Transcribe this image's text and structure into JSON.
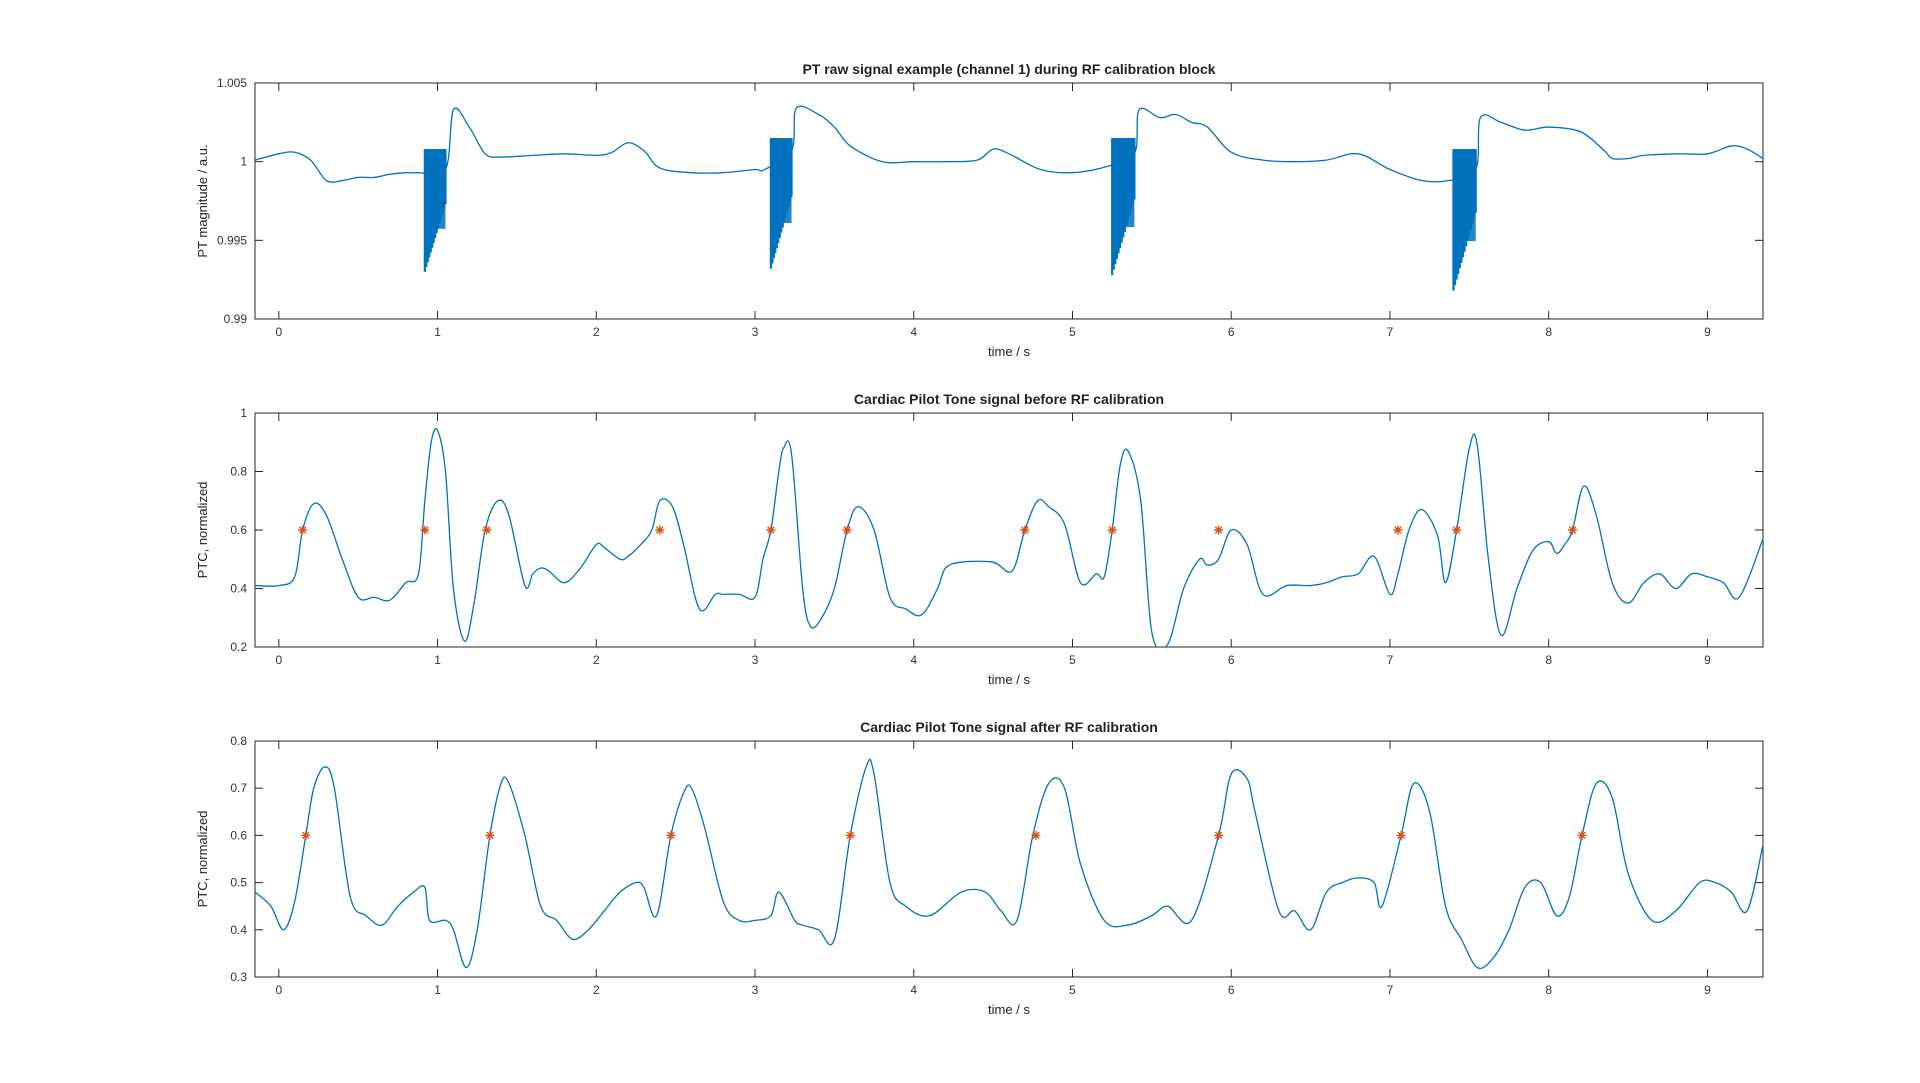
{
  "chart_data": [
    {
      "type": "line",
      "title": "PT raw signal example (channel 1) during RF calibration block",
      "xlabel": "time / s",
      "ylabel": "PT magnitude / a.u.",
      "xlim": [
        -0.15,
        9.35
      ],
      "ylim": [
        0.99,
        1.005
      ],
      "xticks": [
        0,
        1,
        2,
        3,
        4,
        5,
        6,
        7,
        8,
        9
      ],
      "xtick_labels": [
        "0",
        "1",
        "2",
        "3",
        "4",
        "5",
        "6",
        "7",
        "8",
        "9"
      ],
      "yticks": [
        0.99,
        0.995,
        1,
        1.005
      ],
      "ytick_labels": [
        "0.99",
        "0.995",
        "1",
        "1.005"
      ],
      "series_color": "#0072BD",
      "series": [
        {
          "name": "PT magnitude",
          "x": [
            -0.15,
            0.0,
            0.1,
            0.2,
            0.3,
            0.4,
            0.5,
            0.6,
            0.7,
            0.8,
            0.88,
            1.05,
            1.1,
            1.2,
            1.3,
            1.4,
            1.6,
            1.8,
            2.0,
            2.1,
            2.2,
            2.3,
            2.4,
            2.6,
            2.8,
            3.0,
            3.06,
            3.23,
            3.26,
            3.4,
            3.5,
            3.6,
            3.8,
            4.0,
            4.2,
            4.4,
            4.5,
            4.6,
            4.8,
            5.0,
            5.22,
            5.39,
            5.42,
            5.55,
            5.65,
            5.75,
            5.85,
            6.0,
            6.2,
            6.4,
            6.6,
            6.8,
            7.0,
            7.2,
            7.37,
            7.54,
            7.57,
            7.7,
            7.85,
            8.0,
            8.2,
            8.35,
            8.4,
            8.5,
            8.6,
            8.8,
            9.0,
            9.15,
            9.25,
            9.35
          ],
          "y": [
            1.0001,
            1.0005,
            1.0006,
            1.0001,
            0.9988,
            0.9988,
            0.999,
            0.999,
            0.9992,
            0.9993,
            0.9993,
            0.9995,
            1.0033,
            1.0022,
            1.0005,
            1.0003,
            1.0004,
            1.0005,
            1.0004,
            1.0006,
            1.0012,
            1.0007,
            0.9996,
            0.9993,
            0.9993,
            0.9995,
            0.9995,
            1.0007,
            1.0034,
            1.003,
            1.0022,
            1.001,
            1.0,
            1.0,
            1.0,
            1.0001,
            1.0008,
            1.0005,
            0.9995,
            0.9993,
            0.9997,
            1.0005,
            1.0033,
            1.0028,
            1.003,
            1.0025,
            1.0022,
            1.0006,
            1.0001,
            1.0,
            1.0001,
            1.0005,
            0.9995,
            0.9988,
            0.9988,
            0.9995,
            1.0028,
            1.0025,
            1.002,
            1.0022,
            1.0019,
            1.0007,
            1.0002,
            1.0002,
            1.0004,
            1.0005,
            1.0005,
            1.001,
            1.0008,
            1.0002
          ],
          "bursts": [
            {
              "start": 0.92,
              "end": 1.05,
              "min": 0.993,
              "max": 1.0008
            },
            {
              "start": 3.1,
              "end": 3.23,
              "min": 0.9932,
              "max": 1.0015
            },
            {
              "start": 5.25,
              "end": 5.39,
              "min": 0.9928,
              "max": 1.0015
            },
            {
              "start": 7.4,
              "end": 7.54,
              "min": 0.9918,
              "max": 1.0008
            }
          ]
        }
      ]
    },
    {
      "type": "line",
      "title": "Cardiac Pilot Tone signal before RF calibration",
      "xlabel": "time / s",
      "ylabel": "PTC, normalized",
      "xlim": [
        -0.15,
        9.35
      ],
      "ylim": [
        0.2,
        1.0
      ],
      "xticks": [
        0,
        1,
        2,
        3,
        4,
        5,
        6,
        7,
        8,
        9
      ],
      "xtick_labels": [
        "0",
        "1",
        "2",
        "3",
        "4",
        "5",
        "6",
        "7",
        "8",
        "9"
      ],
      "yticks": [
        0.2,
        0.4,
        0.6,
        0.8,
        1.0
      ],
      "ytick_labels": [
        "0.2",
        "0.4",
        "0.6",
        "0.8",
        "1"
      ],
      "series_color": "#0072BD",
      "marker_color": "#D95319",
      "series": [
        {
          "name": "PTC",
          "x": [
            -0.15,
            0.0,
            0.1,
            0.15,
            0.22,
            0.3,
            0.4,
            0.5,
            0.6,
            0.7,
            0.8,
            0.88,
            0.92,
            0.96,
            1.0,
            1.05,
            1.1,
            1.17,
            1.23,
            1.3,
            1.38,
            1.45,
            1.55,
            1.6,
            1.65,
            1.7,
            1.8,
            1.9,
            2.0,
            2.05,
            2.15,
            2.2,
            2.28,
            2.35,
            2.4,
            2.48,
            2.55,
            2.65,
            2.75,
            2.8,
            2.9,
            3.0,
            3.05,
            3.1,
            3.15,
            3.18,
            3.23,
            3.3,
            3.35,
            3.42,
            3.5,
            3.58,
            3.65,
            3.75,
            3.85,
            3.95,
            4.05,
            4.15,
            4.2,
            4.3,
            4.5,
            4.62,
            4.7,
            4.78,
            4.85,
            4.95,
            5.05,
            5.15,
            5.2,
            5.25,
            5.3,
            5.35,
            5.43,
            5.5,
            5.6,
            5.7,
            5.8,
            5.85,
            5.92,
            6.0,
            6.1,
            6.2,
            6.35,
            6.5,
            6.6,
            6.7,
            6.8,
            6.9,
            7.0,
            7.05,
            7.12,
            7.2,
            7.3,
            7.35,
            7.42,
            7.5,
            7.55,
            7.62,
            7.7,
            7.8,
            7.9,
            8.0,
            8.05,
            8.1,
            8.15,
            8.22,
            8.3,
            8.4,
            8.5,
            8.6,
            8.7,
            8.8,
            8.9,
            9.0,
            9.1,
            9.2,
            9.35
          ],
          "y": [
            0.41,
            0.41,
            0.44,
            0.6,
            0.69,
            0.65,
            0.5,
            0.37,
            0.37,
            0.36,
            0.42,
            0.45,
            0.7,
            0.9,
            0.94,
            0.8,
            0.4,
            0.22,
            0.35,
            0.6,
            0.7,
            0.65,
            0.41,
            0.45,
            0.47,
            0.46,
            0.42,
            0.47,
            0.55,
            0.54,
            0.5,
            0.51,
            0.55,
            0.6,
            0.7,
            0.68,
            0.55,
            0.33,
            0.38,
            0.38,
            0.38,
            0.37,
            0.5,
            0.6,
            0.8,
            0.88,
            0.86,
            0.4,
            0.27,
            0.3,
            0.4,
            0.6,
            0.68,
            0.6,
            0.37,
            0.33,
            0.31,
            0.4,
            0.47,
            0.49,
            0.49,
            0.46,
            0.6,
            0.7,
            0.68,
            0.62,
            0.42,
            0.45,
            0.44,
            0.6,
            0.82,
            0.87,
            0.7,
            0.25,
            0.21,
            0.4,
            0.5,
            0.48,
            0.5,
            0.6,
            0.55,
            0.38,
            0.41,
            0.41,
            0.42,
            0.44,
            0.45,
            0.51,
            0.38,
            0.45,
            0.6,
            0.67,
            0.58,
            0.42,
            0.6,
            0.88,
            0.89,
            0.5,
            0.24,
            0.4,
            0.53,
            0.56,
            0.52,
            0.55,
            0.6,
            0.75,
            0.65,
            0.42,
            0.35,
            0.42,
            0.45,
            0.4,
            0.45,
            0.44,
            0.42,
            0.37,
            0.57
          ]
        },
        {
          "name": "trigger markers",
          "marker": "*",
          "x": [
            0.15,
            0.92,
            1.31,
            2.4,
            3.1,
            3.58,
            4.7,
            5.25,
            5.92,
            7.05,
            7.42,
            8.15
          ],
          "y": [
            0.6,
            0.6,
            0.6,
            0.6,
            0.6,
            0.6,
            0.6,
            0.6,
            0.6,
            0.6,
            0.6,
            0.6
          ]
        }
      ]
    },
    {
      "type": "line",
      "title": "Cardiac Pilot Tone signal after RF calibration",
      "xlabel": "time / s",
      "ylabel": "PTC, normalized",
      "xlim": [
        -0.15,
        9.35
      ],
      "ylim": [
        0.3,
        0.8
      ],
      "xticks": [
        0,
        1,
        2,
        3,
        4,
        5,
        6,
        7,
        8,
        9
      ],
      "xtick_labels": [
        "0",
        "1",
        "2",
        "3",
        "4",
        "5",
        "6",
        "7",
        "8",
        "9"
      ],
      "yticks": [
        0.3,
        0.4,
        0.5,
        0.6,
        0.7,
        0.8
      ],
      "ytick_labels": [
        "0.3",
        "0.4",
        "0.5",
        "0.6",
        "0.7",
        "0.8"
      ],
      "series_color": "#0072BD",
      "marker_color": "#D95319",
      "series": [
        {
          "name": "PTC",
          "x": [
            -0.15,
            -0.05,
            0.03,
            0.1,
            0.17,
            0.22,
            0.29,
            0.35,
            0.45,
            0.55,
            0.65,
            0.75,
            0.85,
            0.92,
            0.95,
            1.05,
            1.1,
            1.18,
            1.25,
            1.33,
            1.4,
            1.45,
            1.55,
            1.65,
            1.75,
            1.85,
            1.95,
            2.05,
            2.15,
            2.25,
            2.3,
            2.38,
            2.47,
            2.55,
            2.6,
            2.68,
            2.8,
            2.9,
            3.0,
            3.1,
            3.15,
            3.25,
            3.3,
            3.4,
            3.5,
            3.6,
            3.7,
            3.75,
            3.85,
            3.95,
            4.1,
            4.3,
            4.45,
            4.55,
            4.65,
            4.75,
            4.85,
            4.95,
            5.05,
            5.2,
            5.35,
            5.5,
            5.6,
            5.75,
            5.92,
            6.0,
            6.1,
            6.15,
            6.3,
            6.4,
            6.5,
            6.6,
            6.7,
            6.8,
            6.9,
            6.95,
            7.07,
            7.15,
            7.25,
            7.35,
            7.45,
            7.55,
            7.65,
            7.75,
            7.85,
            7.95,
            8.05,
            8.13,
            8.21,
            8.3,
            8.4,
            8.5,
            8.65,
            8.8,
            8.95,
            9.05,
            9.15,
            9.25,
            9.35
          ],
          "y": [
            0.48,
            0.45,
            0.4,
            0.46,
            0.6,
            0.7,
            0.745,
            0.7,
            0.47,
            0.43,
            0.41,
            0.45,
            0.48,
            0.49,
            0.42,
            0.42,
            0.4,
            0.32,
            0.4,
            0.6,
            0.71,
            0.71,
            0.6,
            0.45,
            0.42,
            0.38,
            0.4,
            0.44,
            0.48,
            0.5,
            0.49,
            0.43,
            0.6,
            0.69,
            0.7,
            0.62,
            0.46,
            0.42,
            0.42,
            0.43,
            0.48,
            0.42,
            0.41,
            0.4,
            0.38,
            0.6,
            0.745,
            0.73,
            0.5,
            0.45,
            0.43,
            0.48,
            0.48,
            0.44,
            0.42,
            0.6,
            0.71,
            0.7,
            0.54,
            0.42,
            0.41,
            0.43,
            0.45,
            0.42,
            0.6,
            0.73,
            0.72,
            0.65,
            0.44,
            0.44,
            0.4,
            0.48,
            0.5,
            0.51,
            0.5,
            0.45,
            0.6,
            0.71,
            0.65,
            0.45,
            0.38,
            0.32,
            0.34,
            0.4,
            0.49,
            0.5,
            0.43,
            0.47,
            0.6,
            0.71,
            0.68,
            0.52,
            0.42,
            0.44,
            0.5,
            0.5,
            0.48,
            0.44,
            0.58
          ]
        },
        {
          "name": "trigger markers",
          "marker": "*",
          "x": [
            0.17,
            1.33,
            2.47,
            3.6,
            4.77,
            5.92,
            7.07,
            8.21
          ],
          "y": [
            0.6,
            0.6,
            0.6,
            0.6,
            0.6,
            0.6,
            0.6,
            0.6
          ]
        }
      ]
    }
  ]
}
